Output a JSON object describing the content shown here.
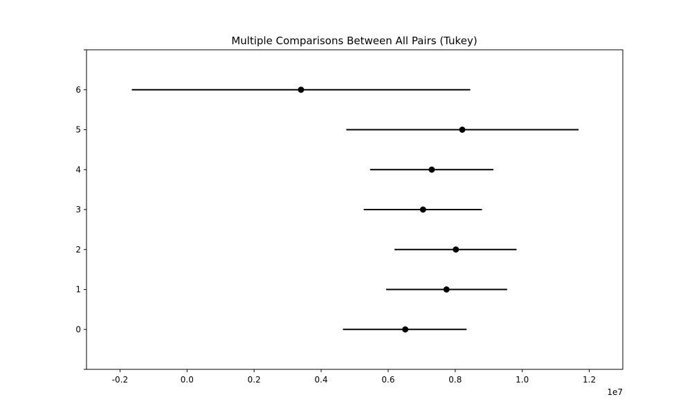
{
  "chart_data": {
    "type": "scatter",
    "title": "Multiple Comparisons Between All Pairs (Tukey)",
    "xlabel": "",
    "ylabel": "",
    "x_offset_label": "1e7",
    "xlim": [
      -0.3,
      1.3
    ],
    "ylim": [
      -1,
      7
    ],
    "x_ticks": [
      -0.2,
      0.0,
      0.2,
      0.4,
      0.6,
      0.8,
      1.0,
      1.2
    ],
    "x_tick_labels": [
      "-0.2",
      "0.0",
      "0.2",
      "0.4",
      "0.6",
      "0.8",
      "1.0",
      "1.2"
    ],
    "y_ticks": [
      0,
      1,
      2,
      3,
      4,
      5,
      6
    ],
    "y_tick_labels": [
      "0",
      "1",
      "2",
      "3",
      "4",
      "5",
      "6"
    ],
    "grid": false,
    "series": [
      {
        "groups": [
          0,
          1,
          2,
          3,
          4,
          5,
          6
        ],
        "means": [
          0.651,
          0.774,
          0.802,
          0.704,
          0.73,
          0.821,
          0.34
        ],
        "lower": [
          0.465,
          0.594,
          0.619,
          0.527,
          0.546,
          0.475,
          -0.165
        ],
        "upper": [
          0.834,
          0.955,
          0.983,
          0.88,
          0.914,
          1.168,
          0.845
        ]
      }
    ],
    "colors": {
      "marker": "#000000",
      "line": "#000000",
      "axes": "#000000"
    }
  }
}
